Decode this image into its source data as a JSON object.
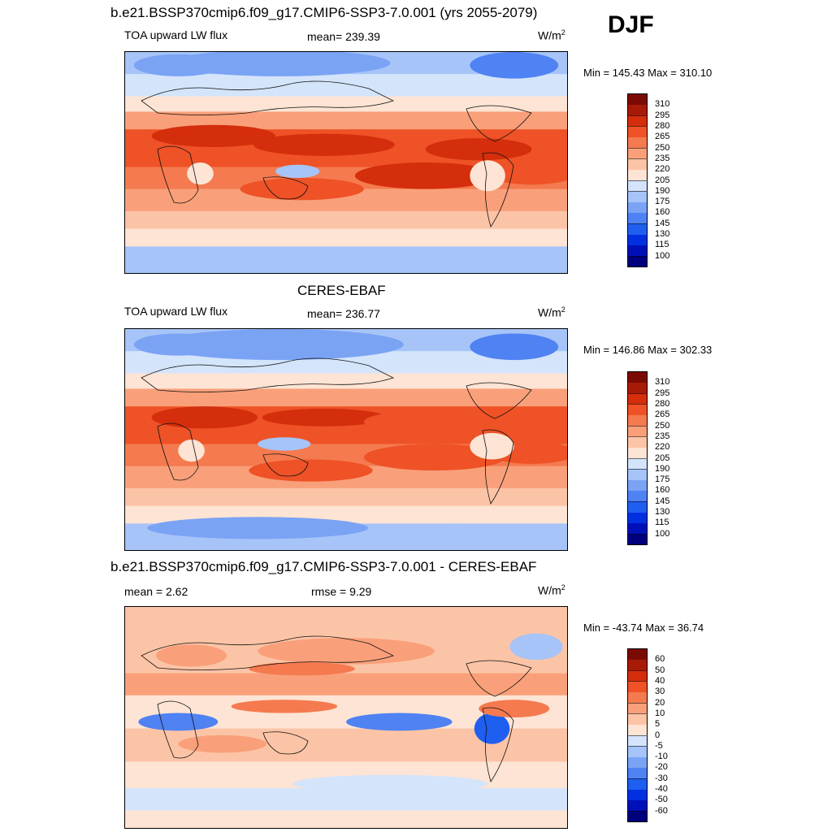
{
  "header": {
    "model_title": "b.e21.BSSP370cmip6.f09_g17.CMIP6-SSP3-7.0.001 (yrs 2055-2079)",
    "season": "DJF"
  },
  "panels": [
    {
      "id": "model",
      "section_title": "",
      "variable": "TOA upward LW flux",
      "mean_text": "mean= 239.39",
      "rmse_text": "",
      "units_base": "W/m",
      "units_exp": "2",
      "minmax_text": "Min = 145.43 Max = 310.10"
    },
    {
      "id": "obs",
      "section_title": "CERES-EBAF",
      "variable": "TOA upward LW flux",
      "mean_text": "mean= 236.77",
      "rmse_text": "",
      "units_base": "W/m",
      "units_exp": "2",
      "minmax_text": "Min = 146.86 Max = 302.33"
    },
    {
      "id": "diff",
      "section_title": "b.e21.BSSP370cmip6.f09_g17.CMIP6-SSP3-7.0.001 - CERES-EBAF",
      "variable": "",
      "mean_text": "mean =   2.62",
      "rmse_text": "rmse =   9.29",
      "units_base": "W/m",
      "units_exp": "2",
      "minmax_text": "Min = -43.74 Max =  36.74"
    }
  ],
  "chart_data": [
    {
      "type": "heatmap",
      "title": "TOA upward LW flux",
      "subtitle": "mean= 239.39",
      "units": "W/m2",
      "min": 145.43,
      "max": 310.1,
      "mean": 239.39,
      "colorbar_levels": [
        100,
        115,
        130,
        145,
        160,
        175,
        190,
        205,
        220,
        235,
        250,
        265,
        280,
        295,
        310
      ],
      "colorbar_colors": [
        "#00007f",
        "#0010b8",
        "#0030e0",
        "#1f5ff0",
        "#4f82f2",
        "#7aa3f4",
        "#a6c4f8",
        "#d4e4fb",
        "#fde4d4",
        "#fcc4a6",
        "#f9a07a",
        "#f57a4f",
        "#ee5226",
        "#d42e0c",
        "#a81a08",
        "#7c0a04"
      ]
    },
    {
      "type": "heatmap",
      "title": "TOA upward LW flux",
      "subtitle": "CERES-EBAF",
      "units": "W/m2",
      "min": 146.86,
      "max": 302.33,
      "mean": 236.77,
      "colorbar_levels": [
        100,
        115,
        130,
        145,
        160,
        175,
        190,
        205,
        220,
        235,
        250,
        265,
        280,
        295,
        310
      ],
      "colorbar_colors": [
        "#00007f",
        "#0010b8",
        "#0030e0",
        "#1f5ff0",
        "#4f82f2",
        "#7aa3f4",
        "#a6c4f8",
        "#d4e4fb",
        "#fde4d4",
        "#fcc4a6",
        "#f9a07a",
        "#f57a4f",
        "#ee5226",
        "#d42e0c",
        "#a81a08",
        "#7c0a04"
      ]
    },
    {
      "type": "heatmap",
      "title": "b.e21.BSSP370cmip6.f09_g17.CMIP6-SSP3-7.0.001 - CERES-EBAF",
      "units": "W/m2",
      "min": -43.74,
      "max": 36.74,
      "mean": 2.62,
      "rmse": 9.29,
      "colorbar_levels": [
        -60,
        -50,
        -40,
        -30,
        -20,
        -10,
        -5,
        0,
        5,
        10,
        20,
        30,
        40,
        50,
        60
      ],
      "colorbar_colors": [
        "#00007f",
        "#0010b8",
        "#0030e0",
        "#1f5ff0",
        "#4f82f2",
        "#7aa3f4",
        "#a6c4f8",
        "#d4e4fb",
        "#fde4d4",
        "#fcc4a6",
        "#f9a07a",
        "#f57a4f",
        "#ee5226",
        "#d42e0c",
        "#a81a08",
        "#7c0a04"
      ]
    }
  ]
}
